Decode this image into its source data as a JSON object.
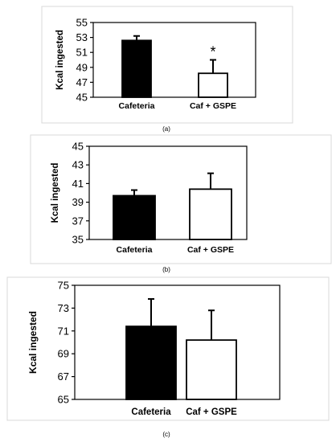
{
  "chart_data": [
    {
      "type": "bar",
      "panel_label": "(a)",
      "categories": [
        "Cafeteria",
        "Caf + GSPE"
      ],
      "values": [
        52.6,
        48.2
      ],
      "errors": [
        0.6,
        1.8
      ],
      "bar_colors": [
        "#000000",
        "#ffffff"
      ],
      "annotations": [
        "",
        "*"
      ],
      "ylabel": "Kcal ingested",
      "ylim": [
        45,
        55
      ],
      "yticks": [
        "45",
        "47",
        "49",
        "51",
        "53",
        "55"
      ],
      "grid": false,
      "legend": "none"
    },
    {
      "type": "bar",
      "panel_label": "(b)",
      "categories": [
        "Cafeteria",
        "Caf + GSPE"
      ],
      "values": [
        39.7,
        40.4
      ],
      "errors": [
        0.6,
        1.7
      ],
      "bar_colors": [
        "#000000",
        "#ffffff"
      ],
      "annotations": [
        "",
        ""
      ],
      "ylabel": "Kcal ingested",
      "ylim": [
        35,
        45
      ],
      "yticks": [
        "35",
        "37",
        "39",
        "41",
        "43",
        "45"
      ],
      "grid": false,
      "legend": "none"
    },
    {
      "type": "bar",
      "panel_label": "(c)",
      "categories": [
        "Cafeteria",
        "Caf + GSPE"
      ],
      "values": [
        71.4,
        70.2
      ],
      "errors": [
        2.4,
        2.6
      ],
      "bar_colors": [
        "#000000",
        "#ffffff"
      ],
      "annotations": [
        "",
        ""
      ],
      "ylabel": "Kcal ingested",
      "ylim": [
        65,
        75
      ],
      "yticks": [
        "65",
        "67",
        "69",
        "71",
        "73",
        "75"
      ],
      "grid": false,
      "legend": "none"
    }
  ]
}
